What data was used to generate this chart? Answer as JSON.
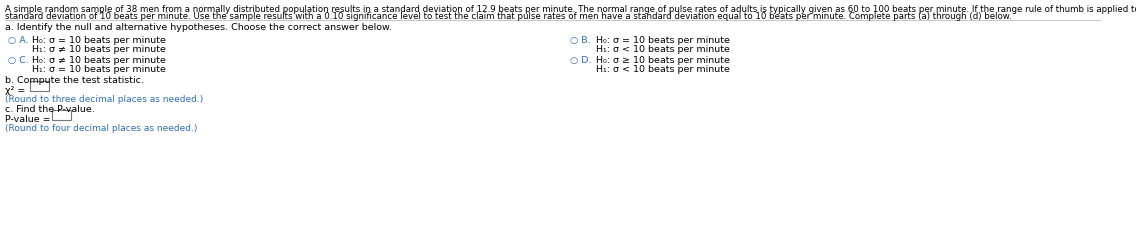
{
  "background_color": "#ffffff",
  "header_line1": "A simple random sample of 38 men from a normally distributed population results in a standard deviation of 12.9 beats per minute. The normal range of pulse rates of adults is typically given as 60 to 100 beats per minute. If the range rule of thumb is applied to that normal range, the result is a",
  "header_line2": "standard deviation of 10 beats per minute. Use the sample results with a 0.10 significance level to test the claim that pulse rates of men have a standard deviation equal to 10 beats per minute. Complete parts (a) through (d) below.",
  "part_a_label": "a. Identify the null and alternative hypotheses. Choose the correct answer below.",
  "optA_circle": "○ A.",
  "optA_H0": "H₀: σ = 10 beats per minute",
  "optA_H1": "H₁: σ ≠ 10 beats per minute",
  "optB_circle": "○ B.",
  "optB_H0": "H₀: σ = 10 beats per minute",
  "optB_H1": "H₁: σ < 10 beats per minute",
  "optC_circle": "○ C.",
  "optC_H0": "H₀: σ ≠ 10 beats per minute",
  "optC_H1": "H₁: σ = 10 beats per minute",
  "optD_circle": "○ D.",
  "optD_H0": "H₀: σ ≥ 10 beats per minute",
  "optD_H1": "H₁: σ < 10 beats per minute",
  "part_b_label": "b. Compute the test statistic.",
  "chi_label": "χ² =",
  "round3": "(Round to three decimal places as needed.)",
  "part_c_label": "c. Find the P-value.",
  "pval_label": "P-value =",
  "round4": "(Round to four decimal places as needed.)",
  "text_color": "#000000",
  "circle_color": "#3070b8",
  "note_color": "#3070b8",
  "line_color": "#bbbbbb",
  "fs_header": 6.2,
  "fs_section": 6.8,
  "fs_option": 6.8,
  "fs_note": 6.5
}
